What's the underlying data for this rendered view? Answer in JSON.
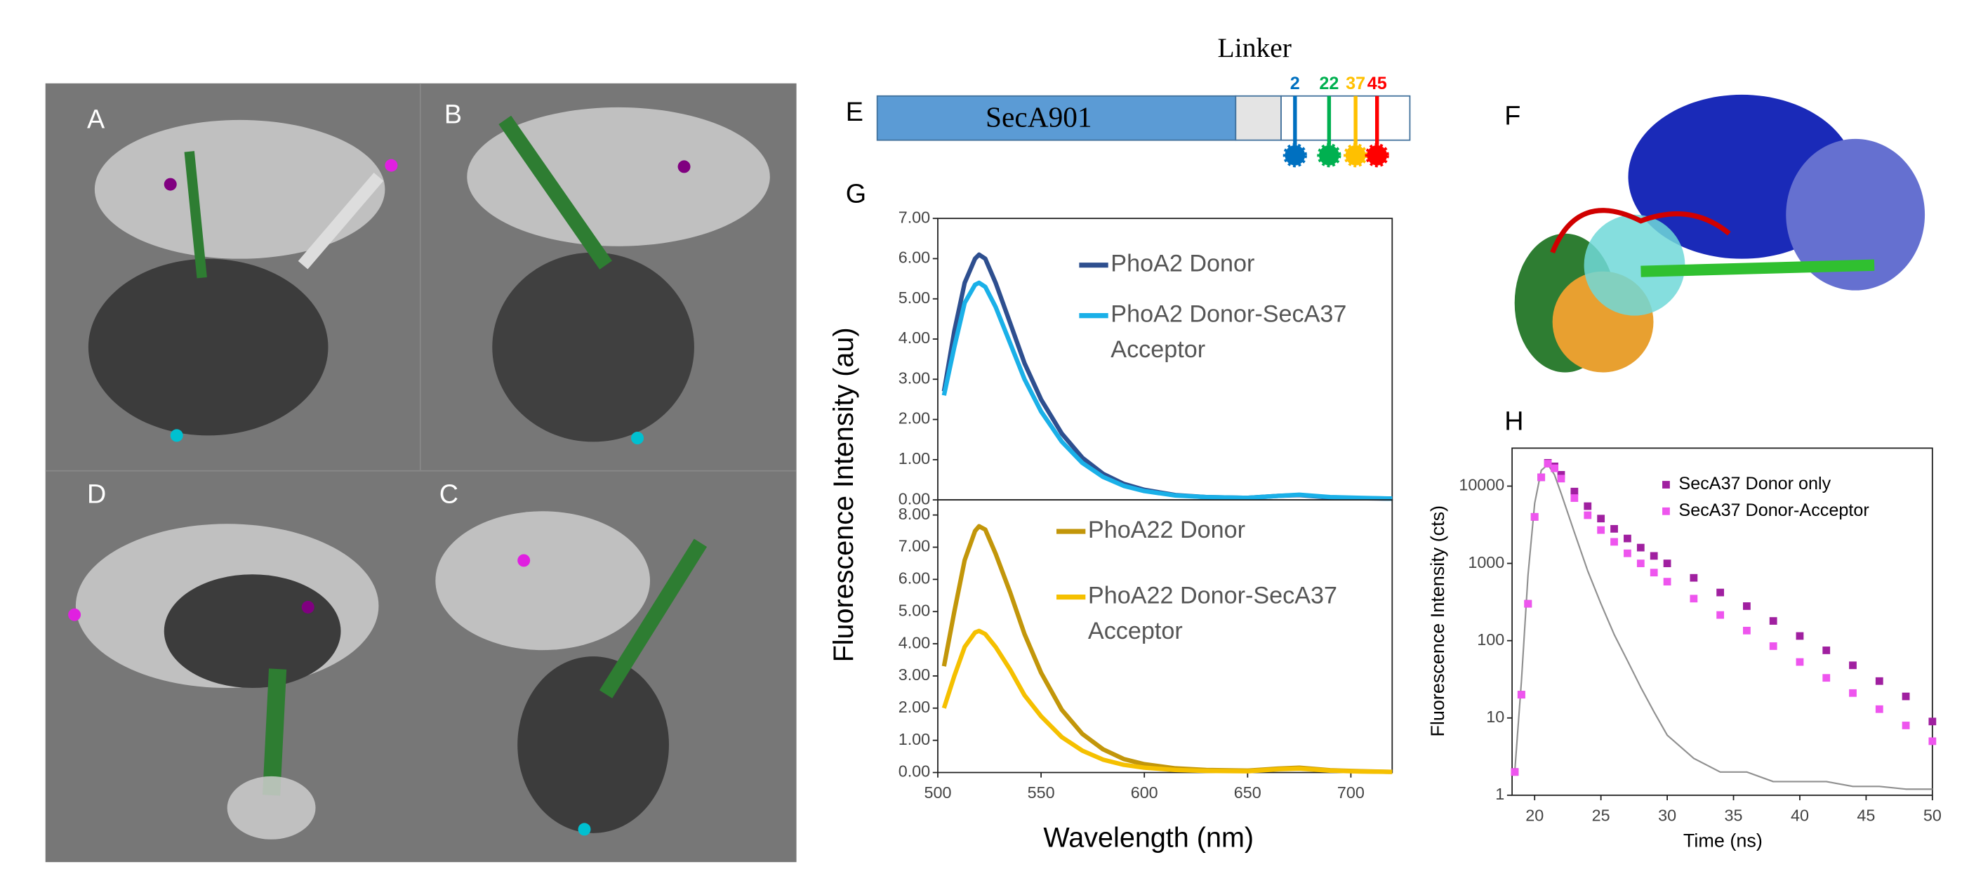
{
  "panel_labels": [
    "A",
    "B",
    "D",
    "C",
    "E",
    "F",
    "G",
    "H"
  ],
  "diagram": {
    "title": "Linker",
    "domain": "SecA901",
    "positions": [
      {
        "label": "2",
        "color": "#0070c0"
      },
      {
        "label": "22",
        "color": "#00b050"
      },
      {
        "label": "37",
        "color": "#ffc000"
      },
      {
        "label": "45",
        "color": "#ff0000"
      }
    ]
  },
  "chart_data": [
    {
      "type": "line",
      "ylabel": "Fluorescence Intensity (au)",
      "x": [
        503,
        508,
        513,
        518,
        520,
        523,
        528,
        535,
        542,
        550,
        560,
        570,
        580,
        590,
        600,
        615,
        630,
        650,
        665,
        675,
        690,
        705,
        720
      ],
      "xlim": [
        500,
        720
      ],
      "ylim": [
        0,
        7
      ],
      "yticks": [
        {
          "value": 0,
          "label": "0.00"
        },
        {
          "value": 1,
          "label": "1.00"
        },
        {
          "value": 2,
          "label": "2.00"
        },
        {
          "value": 3,
          "label": "3.00"
        },
        {
          "value": 4,
          "label": "4.00"
        },
        {
          "value": 5,
          "label": "5.00"
        },
        {
          "value": 6,
          "label": "6.00"
        },
        {
          "value": 7,
          "label": "7.00"
        }
      ],
      "series": [
        {
          "name": "PhoA2 Donor",
          "color": "#2e4f8f",
          "values": [
            2.7,
            4.2,
            5.4,
            6.0,
            6.1,
            6.0,
            5.4,
            4.4,
            3.4,
            2.5,
            1.65,
            1.05,
            0.65,
            0.4,
            0.25,
            0.12,
            0.07,
            0.05,
            0.1,
            0.12,
            0.06,
            0.04,
            0.03
          ]
        },
        {
          "name": "PhoA2 Donor-SecA37 Acceptor",
          "color": "#1ab0e8",
          "values": [
            2.6,
            3.8,
            4.9,
            5.35,
            5.4,
            5.3,
            4.8,
            3.9,
            3.0,
            2.2,
            1.45,
            0.92,
            0.57,
            0.35,
            0.22,
            0.11,
            0.07,
            0.05,
            0.1,
            0.13,
            0.07,
            0.05,
            0.03
          ]
        }
      ]
    },
    {
      "type": "line",
      "xlabel": "Wavelength (nm)",
      "x": [
        503,
        508,
        513,
        518,
        520,
        523,
        528,
        535,
        542,
        550,
        560,
        570,
        580,
        590,
        600,
        615,
        630,
        650,
        665,
        675,
        690,
        705,
        720
      ],
      "xlim": [
        500,
        720
      ],
      "xticks": [
        500,
        550,
        600,
        650,
        700
      ],
      "ylim": [
        0,
        8.47
      ],
      "yticks": [
        {
          "value": 0,
          "label": "0.00"
        },
        {
          "value": 1,
          "label": "1.00"
        },
        {
          "value": 2,
          "label": "2.00"
        },
        {
          "value": 3,
          "label": "3.00"
        },
        {
          "value": 4,
          "label": "4.00"
        },
        {
          "value": 5,
          "label": "5.00"
        },
        {
          "value": 6,
          "label": "6.00"
        },
        {
          "value": 7,
          "label": "7.00"
        },
        {
          "value": 8,
          "label": "8.00"
        }
      ],
      "series": [
        {
          "name": "PhoA22 Donor",
          "color": "#c2960a",
          "values": [
            3.3,
            5.0,
            6.6,
            7.5,
            7.65,
            7.55,
            6.8,
            5.6,
            4.3,
            3.1,
            1.95,
            1.2,
            0.72,
            0.42,
            0.26,
            0.13,
            0.08,
            0.06,
            0.12,
            0.15,
            0.07,
            0.04,
            0.02
          ]
        },
        {
          "name": "PhoA22 Donor-SecA37 Acceptor",
          "color": "#f5c000",
          "values": [
            2.0,
            3.0,
            3.9,
            4.35,
            4.4,
            4.3,
            3.9,
            3.2,
            2.4,
            1.75,
            1.1,
            0.68,
            0.4,
            0.24,
            0.15,
            0.08,
            0.05,
            0.04,
            0.1,
            0.12,
            0.06,
            0.03,
            0.02
          ]
        }
      ]
    },
    {
      "type": "scatter",
      "xlabel": "Time (ns)",
      "ylabel": "Fluorescence Intensity (cts)",
      "yscale": "log",
      "x": [
        18.5,
        19,
        19.5,
        20,
        20.5,
        21,
        21.5,
        22,
        23,
        24,
        25,
        26,
        27,
        28,
        29,
        30,
        32,
        34,
        36,
        38,
        40,
        42,
        44,
        46,
        48,
        50
      ],
      "xlim": [
        18.3,
        50
      ],
      "xticks": [
        20,
        25,
        30,
        35,
        40,
        45,
        50
      ],
      "ylim": [
        1,
        31000
      ],
      "yticks": [
        1,
        10,
        100,
        1000,
        10000
      ],
      "series": [
        {
          "color": "#909090",
          "style": "line",
          "values": [
            2,
            30,
            700,
            6000,
            16000,
            19000,
            14000,
            8000,
            2500,
            800,
            300,
            120,
            55,
            25,
            12,
            6,
            3,
            2,
            2,
            1.5,
            1.5,
            1.5,
            1.3,
            1.3,
            1.2,
            1.2
          ]
        },
        {
          "name": "SecA37 Donor only",
          "color": "#a020a0",
          "style": "markers",
          "values": [
            2,
            20,
            300,
            4000,
            13000,
            20000,
            18000,
            14000,
            8500,
            5500,
            3800,
            2800,
            2100,
            1600,
            1250,
            1000,
            650,
            420,
            280,
            180,
            115,
            75,
            48,
            30,
            19,
            9
          ]
        },
        {
          "name": "SecA37 Donor-Acceptor",
          "color": "#ee55ee",
          "style": "markers",
          "values": [
            2,
            20,
            300,
            4000,
            13000,
            19500,
            17000,
            12500,
            7000,
            4200,
            2700,
            1900,
            1350,
            1000,
            760,
            580,
            350,
            215,
            135,
            85,
            53,
            33,
            21,
            13,
            8,
            5
          ]
        }
      ]
    }
  ]
}
